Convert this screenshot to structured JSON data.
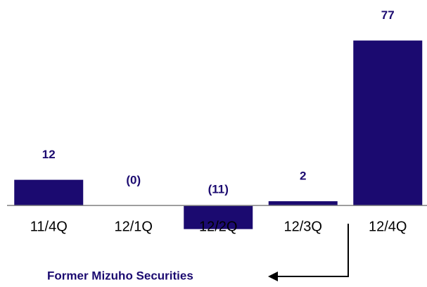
{
  "chart_data": {
    "type": "bar",
    "categories": [
      "11/4Q",
      "12/1Q",
      "12/2Q",
      "12/3Q",
      "12/4Q"
    ],
    "values": [
      12,
      0,
      -11,
      2,
      77
    ],
    "value_labels": [
      "12",
      "(0)",
      "(11)",
      "2",
      "77"
    ],
    "color": "#1b0a70",
    "ylim": [
      -40,
      90
    ],
    "annotation": "Former Mizuho Securities"
  }
}
